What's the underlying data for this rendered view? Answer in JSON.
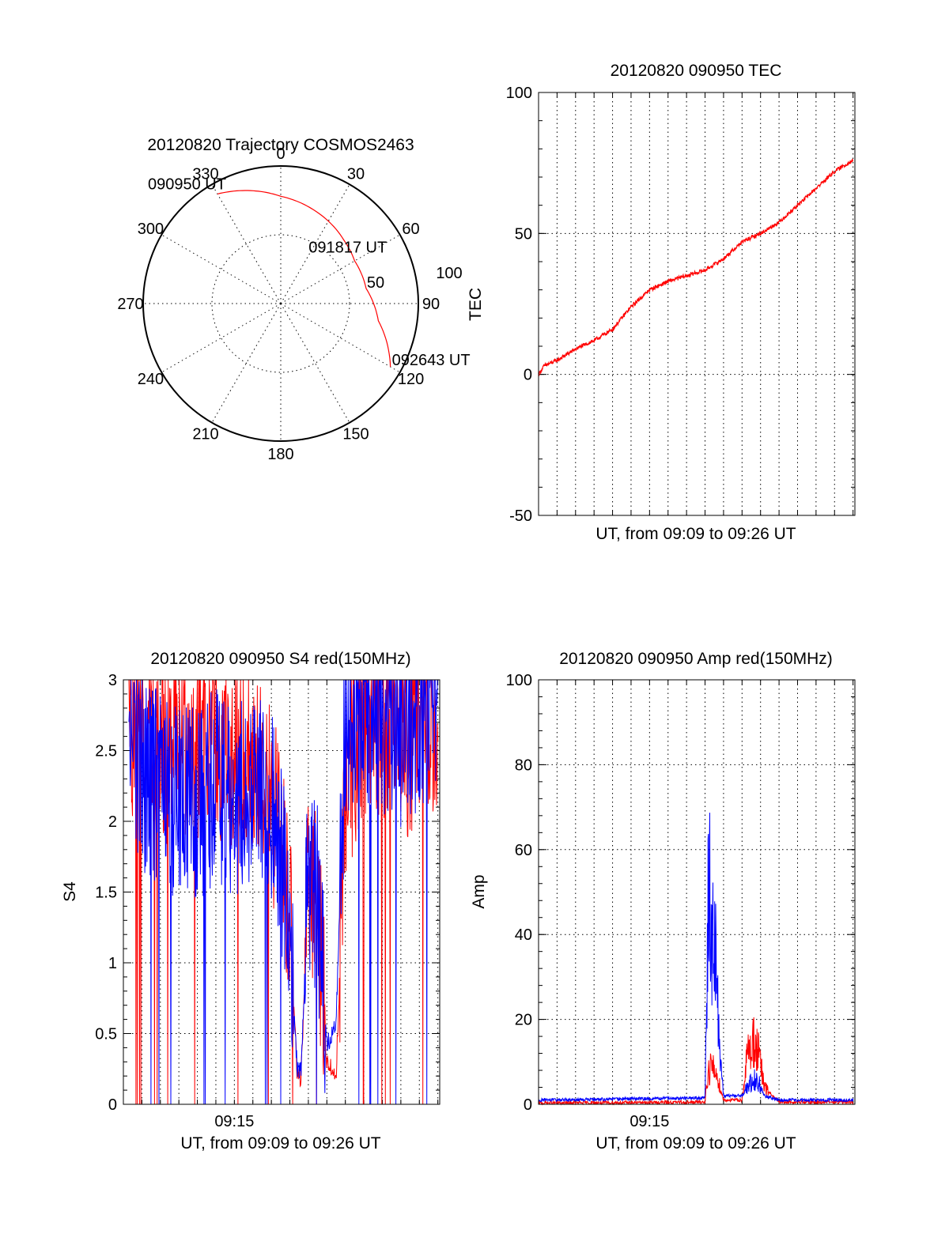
{
  "colors": {
    "red": "#ff0000",
    "blue": "#0000ff",
    "axis": "#000000",
    "grid": "#000000",
    "background": "#ffffff"
  },
  "chart_data": [
    {
      "type": "polar",
      "title": "20120820 Trajectory COSMOS2463",
      "angle_labels": [
        "0",
        "30",
        "60",
        "90",
        "120",
        "150",
        "180",
        "210",
        "240",
        "270",
        "300",
        "330"
      ],
      "radius_labels": [
        "50",
        "100"
      ],
      "rlim": [
        0,
        100
      ],
      "grid": true,
      "series": [
        {
          "color": "#ff0000",
          "points": [
            {
              "az": 330,
              "r": 92
            },
            {
              "az": 345,
              "r": 85
            },
            {
              "az": 0,
              "r": 78
            },
            {
              "az": 20,
              "r": 72
            },
            {
              "az": 45,
              "r": 65
            },
            {
              "az": 60,
              "r": 62
            },
            {
              "az": 80,
              "r": 63
            },
            {
              "az": 100,
              "r": 72
            },
            {
              "az": 120,
              "r": 92
            }
          ]
        }
      ],
      "annotations": [
        {
          "text": "090950 UT",
          "az": 330,
          "r": 92
        },
        {
          "text": "091817 UT",
          "az": 62,
          "r": 62
        },
        {
          "text": "092643 UT",
          "az": 120,
          "r": 92
        }
      ]
    },
    {
      "type": "line",
      "title": "20120820 090950 TEC",
      "xlabel": "UT, from 09:09 to 09:26 UT",
      "ylabel": "TEC",
      "ylim": [
        -50,
        100
      ],
      "yticks": [
        "-50",
        "0",
        "50",
        "100"
      ],
      "xlim_minutes": [
        0,
        17.1
      ],
      "grid": true,
      "series": [
        {
          "color": "#ff0000",
          "x": [
            0,
            0.3,
            1,
            2,
            3,
            4,
            5,
            6,
            7,
            8,
            9,
            10,
            11,
            12,
            13,
            14,
            15,
            16,
            17
          ],
          "y": [
            0,
            3,
            5,
            9,
            12,
            16,
            24,
            30,
            33,
            35,
            37,
            41,
            47,
            50,
            54,
            60,
            66,
            72,
            76
          ]
        }
      ]
    },
    {
      "type": "line",
      "title": "20120820 090950 S4 red(150MHz)",
      "xlabel": "UT, from 09:09 to 09:26 UT",
      "ylabel": "S4",
      "ylim": [
        0,
        3
      ],
      "yticks": [
        "0",
        "0.5",
        "1",
        "1.5",
        "2",
        "2.5",
        "3"
      ],
      "xticks": [
        "09:15"
      ],
      "xlim_minutes": [
        0,
        17.1
      ],
      "grid": true,
      "series": [
        {
          "color": "#ff0000",
          "x": [
            0.3,
            1,
            2,
            3,
            4,
            5,
            6,
            7,
            8,
            9,
            9.4,
            9.6,
            10,
            10.5,
            11,
            11.5,
            12,
            13,
            14,
            15,
            16,
            17
          ],
          "y": [
            2.6,
            2.5,
            2.4,
            2.4,
            2.4,
            2.4,
            2.3,
            2.3,
            2.0,
            1.3,
            0.2,
            0.2,
            1.4,
            1.2,
            0.3,
            0.2,
            2.0,
            2.6,
            2.6,
            2.4,
            2.5,
            2.5
          ]
        },
        {
          "color": "#0000ff",
          "x": [
            0.3,
            1,
            2,
            3,
            4,
            5,
            6,
            7,
            8,
            9,
            9.4,
            9.6,
            10,
            10.5,
            11,
            11.5,
            12,
            13,
            14,
            15,
            16,
            17
          ],
          "y": [
            2.4,
            2.2,
            2.1,
            2.0,
            2.0,
            2.1,
            2.0,
            2.1,
            2.0,
            1.2,
            0.25,
            0.25,
            1.5,
            1.3,
            0.4,
            0.6,
            2.5,
            2.7,
            2.6,
            2.5,
            2.6,
            2.7
          ]
        }
      ]
    },
    {
      "type": "line",
      "title": "20120820 090950 Amp red(150MHz)",
      "xlabel": "UT, from 09:09 to 09:26 UT",
      "ylabel": "Amp",
      "ylim": [
        0,
        100
      ],
      "yticks": [
        "0",
        "20",
        "40",
        "60",
        "80",
        "100"
      ],
      "xticks": [
        "09:15"
      ],
      "xlim_minutes": [
        0,
        17.1
      ],
      "grid": true,
      "series": [
        {
          "color": "#ff0000",
          "x": [
            0,
            9,
            9.1,
            9.3,
            9.5,
            9.7,
            10,
            11,
            11.3,
            11.6,
            11.9,
            12.2,
            13,
            17
          ],
          "y": [
            0.3,
            0.5,
            6,
            9,
            8,
            6,
            1,
            1,
            12,
            15,
            12,
            4,
            0.5,
            0.5
          ]
        },
        {
          "color": "#0000ff",
          "x": [
            0,
            9,
            9.1,
            9.2,
            9.35,
            9.5,
            9.7,
            10,
            11,
            11.3,
            11.6,
            11.9,
            12.2,
            13,
            17
          ],
          "y": [
            1,
            1.5,
            25,
            56,
            40,
            42,
            20,
            2,
            2,
            4,
            6,
            5,
            2,
            1,
            1
          ]
        }
      ]
    }
  ]
}
